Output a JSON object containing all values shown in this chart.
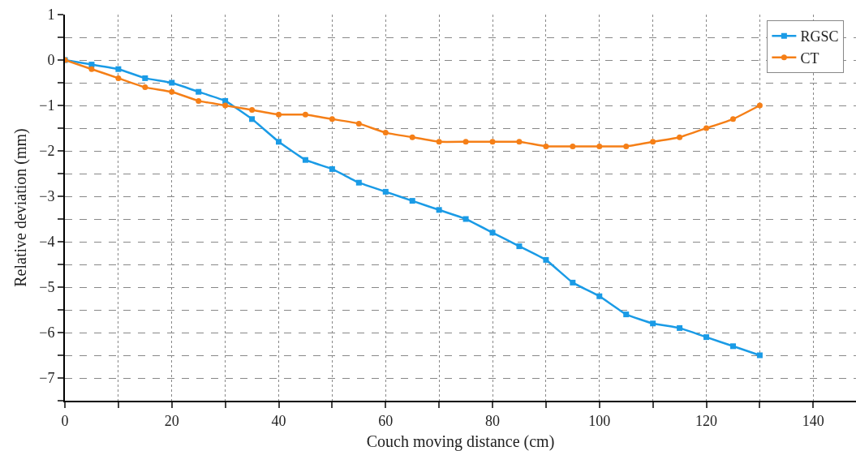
{
  "chart_data": {
    "type": "line",
    "xlabel": "Couch moving distance (cm)",
    "ylabel": "Relative deviation (mm)",
    "x": [
      0,
      5,
      10,
      15,
      20,
      25,
      30,
      35,
      40,
      45,
      50,
      55,
      60,
      65,
      70,
      75,
      80,
      85,
      90,
      95,
      100,
      105,
      110,
      115,
      120,
      125,
      130
    ],
    "series": [
      {
        "name": "RGSC",
        "color": "#1a9be6",
        "marker": "square",
        "values": [
          0,
          -0.1,
          -0.2,
          -0.4,
          -0.5,
          -0.7,
          -0.9,
          -1.3,
          -1.8,
          -2.2,
          -2.4,
          -2.7,
          -2.9,
          -3.1,
          -3.3,
          -3.5,
          -3.8,
          -4.1,
          -4.4,
          -4.9,
          -5.2,
          -5.6,
          -5.8,
          -5.9,
          -6.1,
          -6.3,
          -6.5
        ]
      },
      {
        "name": "CT",
        "color": "#f57f17",
        "marker": "circle",
        "values": [
          0,
          -0.2,
          -0.4,
          -0.6,
          -0.7,
          -0.9,
          -1.0,
          -1.1,
          -1.2,
          -1.2,
          -1.3,
          -1.4,
          -1.6,
          -1.7,
          -1.8,
          -1.8,
          -1.8,
          -1.8,
          -1.9,
          -1.9,
          -1.9,
          -1.9,
          -1.8,
          -1.7,
          -1.5,
          -1.3,
          -1.0
        ]
      }
    ],
    "xlim": [
      0,
      148
    ],
    "xticks": [
      0,
      {
        "value": 10,
        "label": null
      },
      20,
      {
        "value": 30,
        "label": null
      },
      40,
      {
        "value": 50,
        "label": null
      },
      60,
      {
        "value": 70,
        "label": null
      },
      80,
      {
        "value": 90,
        "label": null
      },
      100,
      {
        "value": 110,
        "label": null
      },
      120,
      {
        "value": 130,
        "label": null
      },
      140
    ],
    "ylim": [
      -7.5,
      1
    ],
    "yticks": [
      {
        "value": -7.5,
        "label": null
      },
      -7,
      {
        "value": -6.5,
        "label": null
      },
      -6,
      {
        "value": -5.5,
        "label": null
      },
      -5,
      {
        "value": -4.5,
        "label": null
      },
      -4,
      {
        "value": -3.5,
        "label": null
      },
      -3,
      {
        "value": -2.5,
        "label": null
      },
      -2,
      {
        "value": -1.5,
        "label": null
      },
      -1,
      {
        "value": -0.5,
        "label": null
      },
      0,
      {
        "value": 0.5,
        "label": null
      },
      1
    ],
    "grid": true,
    "legend": "top right",
    "line_style": "solid"
  }
}
